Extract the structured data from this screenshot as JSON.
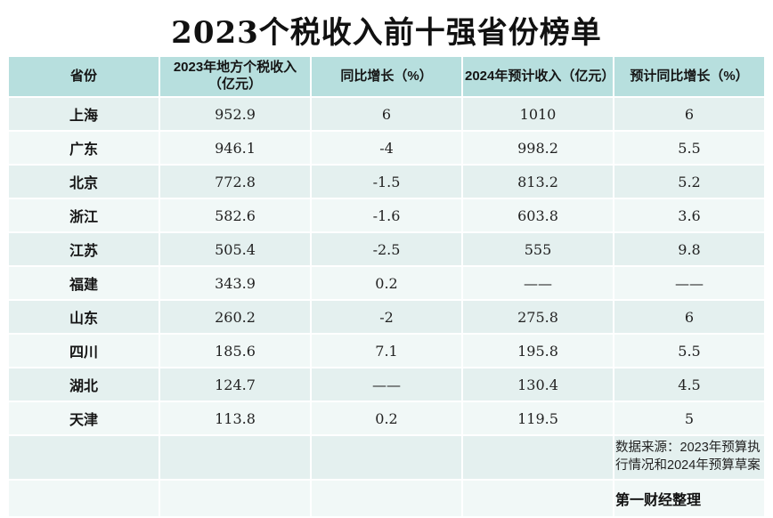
{
  "title": "2023个税收入前十强省份榜单",
  "colors": {
    "header_bg": "#b7dfde",
    "row_odd_bg": "#e4f0ef",
    "row_even_bg": "#f1f8f7",
    "page_bg": "#ffffff",
    "text": "#1a1a1a"
  },
  "table": {
    "headers": [
      "省份",
      "2023年地方个税收入（亿元）",
      "同比增长（%）",
      "2024年预计收入（亿元）",
      "预计同比增长（%）"
    ],
    "rows": [
      [
        "上海",
        "952.9",
        "6",
        "1010",
        "6"
      ],
      [
        "广东",
        "946.1",
        "-4",
        "998.2",
        "5.5"
      ],
      [
        "北京",
        "772.8",
        "-1.5",
        "813.2",
        "5.2"
      ],
      [
        "浙江",
        "582.6",
        "-1.6",
        "603.8",
        "3.6"
      ],
      [
        "江苏",
        "505.4",
        "-2.5",
        "555",
        "9.8"
      ],
      [
        "福建",
        "343.9",
        "0.2",
        "——",
        "——"
      ],
      [
        "山东",
        "260.2",
        "-2",
        "275.8",
        "6"
      ],
      [
        "四川",
        "185.6",
        "7.1",
        "195.8",
        "5.5"
      ],
      [
        "湖北",
        "124.7",
        "——",
        "130.4",
        "4.5"
      ],
      [
        "天津",
        "113.8",
        "0.2",
        "119.5",
        "5"
      ]
    ],
    "footer": {
      "source": "数据来源：2023年预算执行情况和2024年预算草案",
      "credit": "第一财经整理"
    }
  },
  "chart_data": {
    "type": "table",
    "title": "2023个税收入前十强省份榜单",
    "columns": [
      "省份",
      "2023年地方个税收入（亿元）",
      "同比增长（%）",
      "2024年预计收入（亿元）",
      "预计同比增长（%）"
    ],
    "rows": [
      [
        "上海",
        952.9,
        6,
        1010,
        6
      ],
      [
        "广东",
        946.1,
        -4,
        998.2,
        5.5
      ],
      [
        "北京",
        772.8,
        -1.5,
        813.2,
        5.2
      ],
      [
        "浙江",
        582.6,
        -1.6,
        603.8,
        3.6
      ],
      [
        "江苏",
        505.4,
        -2.5,
        555,
        9.8
      ],
      [
        "福建",
        343.9,
        0.2,
        null,
        null
      ],
      [
        "山东",
        260.2,
        -2,
        275.8,
        6
      ],
      [
        "四川",
        185.6,
        7.1,
        195.8,
        5.5
      ],
      [
        "湖北",
        124.7,
        null,
        130.4,
        4.5
      ],
      [
        "天津",
        113.8,
        0.2,
        119.5,
        5
      ]
    ],
    "missing_value_marker": "——",
    "source": "数据来源：2023年预算执行情况和2024年预算草案",
    "credit": "第一财经整理"
  }
}
